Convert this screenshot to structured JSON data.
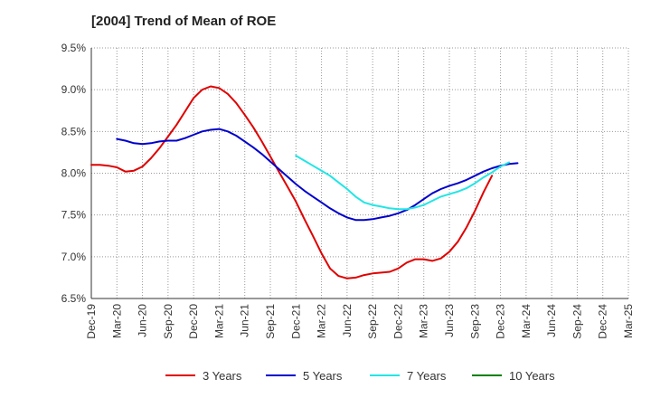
{
  "chart_data": {
    "type": "line",
    "title": "[2004]  Trend of Mean of ROE",
    "xlabel": "",
    "ylabel": "",
    "x_labels": [
      "Dec-19",
      "Mar-20",
      "Jun-20",
      "Sep-20",
      "Dec-20",
      "Mar-21",
      "Jun-21",
      "Sep-21",
      "Dec-21",
      "Mar-22",
      "Jun-22",
      "Sep-22",
      "Dec-22",
      "Mar-23",
      "Jun-23",
      "Sep-23",
      "Dec-23",
      "Mar-24",
      "Jun-24",
      "Sep-24",
      "Dec-24",
      "Mar-25"
    ],
    "y_ticks": [
      "9.5%",
      "9.0%",
      "8.5%",
      "8.0%",
      "7.5%",
      "7.0%",
      "6.5%"
    ],
    "ylim": [
      6.5,
      9.5
    ],
    "grid": true,
    "legend_position": "bottom",
    "colors": {
      "3 Years": "#e00000",
      "5 Years": "#0000cc",
      "7 Years": "#22e5e5",
      "10 Years": "#008000"
    },
    "series": [
      {
        "name": "3 Years",
        "values": [
          8.1,
          8.1,
          8.09,
          8.07,
          8.02,
          8.03,
          8.08,
          8.18,
          8.3,
          8.44,
          8.58,
          8.74,
          8.9,
          9.0,
          9.04,
          9.02,
          8.95,
          8.84,
          8.7,
          8.55,
          8.38,
          8.2,
          8.02,
          7.84,
          7.66,
          7.45,
          7.25,
          7.04,
          6.86,
          6.77,
          6.74,
          6.75,
          6.78,
          6.8,
          6.81,
          6.82,
          6.86,
          6.93,
          6.97,
          6.97,
          6.95,
          6.98,
          7.06,
          7.18,
          7.35,
          7.55,
          7.77,
          7.97
        ]
      },
      {
        "name": "5 Years",
        "values": [
          null,
          null,
          null,
          8.41,
          8.39,
          8.36,
          8.35,
          8.36,
          8.38,
          8.39,
          8.39,
          8.42,
          8.46,
          8.5,
          8.52,
          8.53,
          8.5,
          8.45,
          8.38,
          8.31,
          8.23,
          8.14,
          8.05,
          7.96,
          7.87,
          7.79,
          7.72,
          7.65,
          7.58,
          7.52,
          7.47,
          7.44,
          7.44,
          7.45,
          7.47,
          7.49,
          7.52,
          7.56,
          7.62,
          7.69,
          7.76,
          7.81,
          7.85,
          7.88,
          7.92,
          7.97,
          8.02,
          8.06,
          8.09,
          8.11,
          8.12
        ]
      },
      {
        "name": "7 Years",
        "values": [
          null,
          null,
          null,
          null,
          null,
          null,
          null,
          null,
          null,
          null,
          null,
          null,
          null,
          null,
          null,
          null,
          null,
          null,
          null,
          null,
          null,
          null,
          null,
          null,
          8.21,
          8.15,
          8.09,
          8.03,
          7.97,
          7.89,
          7.81,
          7.72,
          7.65,
          7.62,
          7.6,
          7.58,
          7.57,
          7.57,
          7.59,
          7.62,
          7.67,
          7.72,
          7.75,
          7.78,
          7.82,
          7.88,
          7.95,
          8.01,
          8.08,
          8.13
        ]
      },
      {
        "name": "10 Years",
        "values": []
      }
    ]
  }
}
